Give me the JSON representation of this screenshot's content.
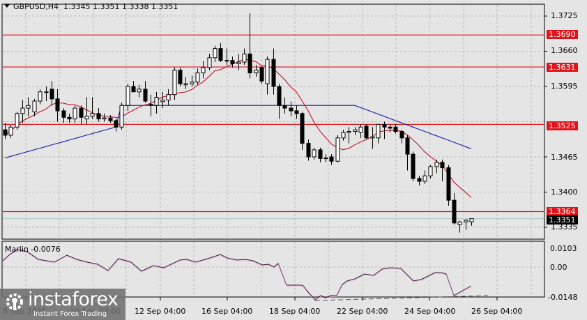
{
  "header": {
    "symbol": "GBPUSD,H4",
    "ohlc": "1.3345 1.3351 1.3338 1.3351"
  },
  "indicator": {
    "label": "Marlin -0.0076",
    "scale": [
      "0.0103",
      "0.00",
      "-0.0148"
    ]
  },
  "watermark": {
    "brand": "instaforex",
    "tagline": "Instant Forex Trading"
  },
  "chart_data": {
    "type": "candlestick",
    "title": "GBPUSD,H4 1.3345 1.3351 1.3338 1.3351",
    "price_axis": {
      "ticks": [
        "1.3725",
        "1.3660",
        "1.3595",
        "1.3465",
        "1.3400",
        "1.3335"
      ],
      "range": [
        1.33,
        1.375
      ]
    },
    "horizontal_levels": [
      {
        "value": "1.3690",
        "color": "#e0141a"
      },
      {
        "value": "1.3631",
        "color": "#e0141a"
      },
      {
        "value": "1.3525",
        "color": "#e0141a"
      },
      {
        "value": "1.3364",
        "color": "#e0141a"
      }
    ],
    "current_price": "1.3351",
    "time_axis": [
      "8 Sep 2025",
      "10 Sep 04:00",
      "12 Sep 04:00",
      "16 Sep 04:00",
      "18 Sep 04:00",
      "22 Sep 04:00",
      "24 Sep 04:00",
      "26 Sep 04:00"
    ],
    "candles": [
      [
        1.3515,
        1.3528,
        1.3498,
        1.3505
      ],
      [
        1.3505,
        1.3524,
        1.35,
        1.352
      ],
      [
        1.352,
        1.3548,
        1.3515,
        1.3545
      ],
      [
        1.3545,
        1.357,
        1.3528,
        1.3555
      ],
      [
        1.3555,
        1.3575,
        1.354,
        1.356
      ],
      [
        1.3548,
        1.3572,
        1.354,
        1.3568
      ],
      [
        1.3568,
        1.359,
        1.3562,
        1.3585
      ],
      [
        1.3585,
        1.3595,
        1.3568,
        1.3585
      ],
      [
        1.359,
        1.3605,
        1.356,
        1.3572
      ],
      [
        1.3572,
        1.359,
        1.353,
        1.355
      ],
      [
        1.355,
        1.3555,
        1.3528,
        1.3538
      ],
      [
        1.3538,
        1.3545,
        1.3528,
        1.3535
      ],
      [
        1.3535,
        1.356,
        1.3528,
        1.3555
      ],
      [
        1.3555,
        1.356,
        1.3525,
        1.3538
      ],
      [
        1.3535,
        1.3575,
        1.3525,
        1.354
      ],
      [
        1.354,
        1.3575,
        1.3535,
        1.3545
      ],
      [
        1.3545,
        1.3555,
        1.353,
        1.3535
      ],
      [
        1.3535,
        1.3545,
        1.353,
        1.3537
      ],
      [
        1.3537,
        1.3542,
        1.3528,
        1.3532
      ],
      [
        1.3532,
        1.3535,
        1.3512,
        1.352
      ],
      [
        1.352,
        1.3565,
        1.3515,
        1.356
      ],
      [
        1.356,
        1.36,
        1.355,
        1.3595
      ],
      [
        1.3595,
        1.3605,
        1.3585,
        1.3585
      ],
      [
        1.3585,
        1.3598,
        1.3575,
        1.359
      ],
      [
        1.359,
        1.3605,
        1.3565,
        1.3568
      ],
      [
        1.3562,
        1.358,
        1.354,
        1.356
      ],
      [
        1.356,
        1.3585,
        1.3545,
        1.3575
      ],
      [
        1.3567,
        1.3585,
        1.3555,
        1.357
      ],
      [
        1.357,
        1.359,
        1.356,
        1.358
      ],
      [
        1.358,
        1.363,
        1.357,
        1.3625
      ],
      [
        1.3625,
        1.363,
        1.3595,
        1.36
      ],
      [
        1.3598,
        1.3612,
        1.359,
        1.36
      ],
      [
        1.36,
        1.3615,
        1.3595,
        1.3603
      ],
      [
        1.3603,
        1.3628,
        1.3598,
        1.362
      ],
      [
        1.362,
        1.3642,
        1.361,
        1.363
      ],
      [
        1.363,
        1.3655,
        1.3625,
        1.3648
      ],
      [
        1.3648,
        1.367,
        1.364,
        1.3665
      ],
      [
        1.3665,
        1.3675,
        1.364,
        1.3643
      ],
      [
        1.3643,
        1.3665,
        1.3635,
        1.3643
      ],
      [
        1.3643,
        1.365,
        1.363,
        1.3637
      ],
      [
        1.3637,
        1.3655,
        1.3625,
        1.364
      ],
      [
        1.364,
        1.3665,
        1.3635,
        1.3655
      ],
      [
        1.3655,
        1.373,
        1.361,
        1.362
      ],
      [
        1.362,
        1.3635,
        1.3613,
        1.3625
      ],
      [
        1.363,
        1.3632,
        1.36,
        1.3605
      ],
      [
        1.36,
        1.365,
        1.358,
        1.3645
      ],
      [
        1.3645,
        1.3665,
        1.358,
        1.3595
      ],
      [
        1.3595,
        1.36,
        1.3535,
        1.356
      ],
      [
        1.356,
        1.3575,
        1.3545,
        1.3555
      ],
      [
        1.3555,
        1.3567,
        1.354,
        1.355
      ],
      [
        1.355,
        1.356,
        1.3535,
        1.3545
      ],
      [
        1.3545,
        1.3548,
        1.3478,
        1.349
      ],
      [
        1.349,
        1.3497,
        1.3458,
        1.3465
      ],
      [
        1.3465,
        1.3482,
        1.346,
        1.3478
      ],
      [
        1.3478,
        1.3482,
        1.3455,
        1.3462
      ],
      [
        1.3462,
        1.347,
        1.3455,
        1.3463
      ],
      [
        1.3465,
        1.347,
        1.345,
        1.3457
      ],
      [
        1.3457,
        1.3505,
        1.3455,
        1.35
      ],
      [
        1.35,
        1.3515,
        1.3495,
        1.351
      ],
      [
        1.351,
        1.352,
        1.349,
        1.3512
      ],
      [
        1.3512,
        1.352,
        1.3505,
        1.3515
      ],
      [
        1.351,
        1.3525,
        1.35,
        1.352
      ],
      [
        1.3522,
        1.3525,
        1.3498,
        1.35
      ],
      [
        1.35,
        1.352,
        1.348,
        1.3502
      ],
      [
        1.35,
        1.3525,
        1.349,
        1.3525
      ],
      [
        1.3525,
        1.353,
        1.3498,
        1.352
      ],
      [
        1.352,
        1.3525,
        1.351,
        1.3518
      ],
      [
        1.352,
        1.3525,
        1.3508,
        1.3512
      ],
      [
        1.3512,
        1.3515,
        1.349,
        1.35
      ],
      [
        1.35,
        1.3505,
        1.344,
        1.347
      ],
      [
        1.347,
        1.3475,
        1.342,
        1.3425
      ],
      [
        1.3425,
        1.343,
        1.3412,
        1.342
      ],
      [
        1.342,
        1.344,
        1.3415,
        1.343
      ],
      [
        1.343,
        1.345,
        1.3425,
        1.3447
      ],
      [
        1.3447,
        1.346,
        1.3435,
        1.3455
      ],
      [
        1.3455,
        1.346,
        1.342,
        1.3445
      ],
      [
        1.3445,
        1.345,
        1.3375,
        1.3385
      ],
      [
        1.3385,
        1.3398,
        1.334,
        1.3343
      ],
      [
        1.334,
        1.3347,
        1.3325,
        1.3345
      ],
      [
        1.3345,
        1.335,
        1.333,
        1.3348
      ],
      [
        1.3345,
        1.3351,
        1.3338,
        1.3351
      ]
    ],
    "ma_fast_color": "#c0142a",
    "ma_slow_color": "#1a1aa0",
    "indicator_series": {
      "name": "Marlin",
      "value": -0.0076,
      "ylim": [
        -0.0148,
        0.0103
      ]
    }
  }
}
